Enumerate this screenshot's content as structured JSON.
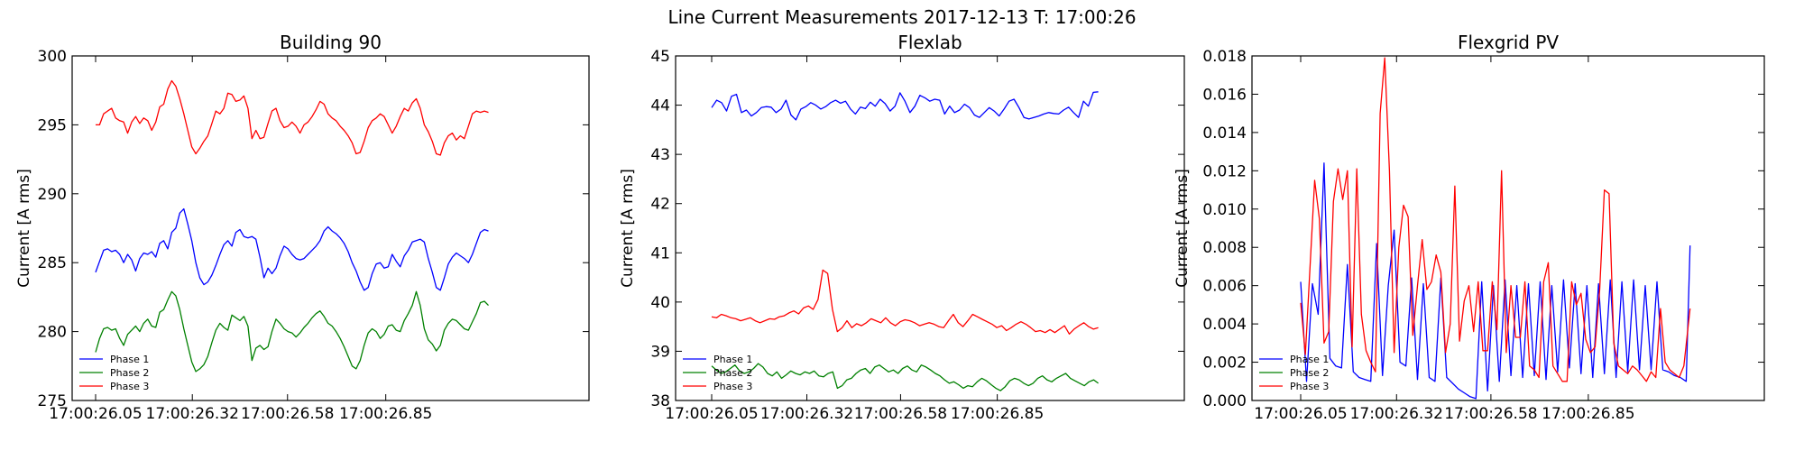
{
  "figure": {
    "suptitle": "Line Current Measurements 2017-12-13 T: 17:00:26"
  },
  "chart_data": [
    {
      "type": "line",
      "title": "Building 90",
      "xlabel": "",
      "ylabel": "Current [A rms]",
      "x_tick_labels": [
        "17:00:26.05",
        "17:00:26.32",
        "17:00:26.58",
        "17:00:26.85"
      ],
      "y_ticks": [
        275,
        280,
        285,
        290,
        295,
        300
      ],
      "ylim": [
        275,
        300
      ],
      "legend_position": "lower-left",
      "series": [
        {
          "name": "Phase 1",
          "color": "#0000ff",
          "values": [
            284.3,
            285.1,
            285.9,
            286.0,
            285.8,
            285.9,
            285.6,
            285.0,
            285.6,
            285.2,
            284.4,
            285.3,
            285.7,
            285.6,
            285.8,
            285.4,
            286.4,
            286.6,
            286.0,
            287.2,
            287.5,
            288.6,
            288.9,
            287.8,
            286.6,
            285.0,
            283.9,
            283.4,
            283.6,
            284.1,
            284.8,
            285.6,
            286.3,
            286.6,
            286.2,
            287.2,
            287.4,
            286.9,
            286.8,
            286.9,
            286.7,
            285.4,
            283.9,
            284.6,
            284.2,
            284.6,
            285.5,
            286.2,
            286.0,
            285.6,
            285.3,
            285.2,
            285.3,
            285.6,
            285.9,
            286.2,
            286.6,
            287.3,
            287.6,
            287.3,
            287.1,
            286.8,
            286.4,
            285.8,
            285.0,
            284.4,
            283.6,
            283.0,
            283.2,
            284.2,
            284.9,
            285.0,
            284.6,
            284.7,
            285.6,
            285.1,
            284.7,
            285.5,
            285.9,
            286.5,
            286.6,
            286.7,
            286.5,
            285.3,
            284.3,
            283.2,
            283.0,
            283.9,
            284.9,
            285.4,
            285.7,
            285.5,
            285.3,
            285.0,
            285.6,
            286.4,
            287.2,
            287.4,
            287.3
          ]
        },
        {
          "name": "Phase 2",
          "color": "#008000",
          "values": [
            278.5,
            279.5,
            280.2,
            280.3,
            280.1,
            280.2,
            279.5,
            279.0,
            279.8,
            280.1,
            280.4,
            280.0,
            280.6,
            280.9,
            280.4,
            280.3,
            281.4,
            281.6,
            282.3,
            282.9,
            282.6,
            281.6,
            280.2,
            279.0,
            277.8,
            277.1,
            277.3,
            277.6,
            278.2,
            279.2,
            280.1,
            280.6,
            280.3,
            280.1,
            281.2,
            281.0,
            280.8,
            281.1,
            280.4,
            277.9,
            278.8,
            279.0,
            278.7,
            278.9,
            280.0,
            280.9,
            280.6,
            280.2,
            280.0,
            279.9,
            279.6,
            279.9,
            280.3,
            280.6,
            281.0,
            281.3,
            281.5,
            281.1,
            280.6,
            280.4,
            280.0,
            279.5,
            278.9,
            278.2,
            277.5,
            277.3,
            277.9,
            279.0,
            279.9,
            280.2,
            280.0,
            279.5,
            279.8,
            280.4,
            280.5,
            280.1,
            280.0,
            280.8,
            281.3,
            281.9,
            282.9,
            281.9,
            280.2,
            279.4,
            279.1,
            278.6,
            279.0,
            280.1,
            280.6,
            280.9,
            280.8,
            280.5,
            280.2,
            280.1,
            280.7,
            281.3,
            282.1,
            282.2,
            281.9
          ]
        },
        {
          "name": "Phase 3",
          "color": "#ff0000",
          "values": [
            295.0,
            295.0,
            295.8,
            296.0,
            296.2,
            295.5,
            295.3,
            295.2,
            294.4,
            295.2,
            295.6,
            295.1,
            295.5,
            295.3,
            294.6,
            295.2,
            296.3,
            296.5,
            297.6,
            298.2,
            297.8,
            296.9,
            295.8,
            294.6,
            293.4,
            292.9,
            293.3,
            293.8,
            294.2,
            295.1,
            296.0,
            295.8,
            296.2,
            297.3,
            297.2,
            296.7,
            296.8,
            297.1,
            296.2,
            294.0,
            294.6,
            294.0,
            294.1,
            295.1,
            296.0,
            296.2,
            295.3,
            294.8,
            294.9,
            295.2,
            294.9,
            294.4,
            295.0,
            295.2,
            295.6,
            296.1,
            296.7,
            296.5,
            295.8,
            295.5,
            295.3,
            294.9,
            294.6,
            294.2,
            293.7,
            292.9,
            293.0,
            293.8,
            294.8,
            295.3,
            295.5,
            295.8,
            295.6,
            295.0,
            294.4,
            294.9,
            295.6,
            296.2,
            296.0,
            296.6,
            296.9,
            296.2,
            295.0,
            294.5,
            293.8,
            292.9,
            292.8,
            293.7,
            294.2,
            294.4,
            293.9,
            294.2,
            294.0,
            294.9,
            295.8,
            296.0,
            295.9,
            296.0,
            295.9
          ]
        }
      ]
    },
    {
      "type": "line",
      "title": "Flexlab",
      "xlabel": "",
      "ylabel": "Current [A rms]",
      "x_tick_labels": [
        "17:00:26.05",
        "17:00:26.32",
        "17:00:26.58",
        "17:00:26.85"
      ],
      "y_ticks": [
        38,
        39,
        40,
        41,
        42,
        43,
        44,
        45
      ],
      "ylim": [
        38,
        45
      ],
      "legend_position": "lower-left",
      "series": [
        {
          "name": "Phase 1",
          "color": "#0000ff",
          "values": [
            43.95,
            44.1,
            44.05,
            43.88,
            44.18,
            44.22,
            43.85,
            43.9,
            43.78,
            43.85,
            43.95,
            43.97,
            43.96,
            43.85,
            43.92,
            44.1,
            43.8,
            43.7,
            43.92,
            43.97,
            44.05,
            44.0,
            43.92,
            43.97,
            44.05,
            44.1,
            44.04,
            44.08,
            43.92,
            43.82,
            43.96,
            43.93,
            44.06,
            43.98,
            44.12,
            44.03,
            43.88,
            43.98,
            44.25,
            44.08,
            43.85,
            43.98,
            44.2,
            44.15,
            44.08,
            44.12,
            44.1,
            43.82,
            43.98,
            43.85,
            43.9,
            44.02,
            43.95,
            43.8,
            43.75,
            43.85,
            43.95,
            43.88,
            43.78,
            43.92,
            44.08,
            44.12,
            43.95,
            43.75,
            43.72,
            43.75,
            43.78,
            43.82,
            43.85,
            43.83,
            43.82,
            43.9,
            43.96,
            43.85,
            43.75,
            44.08,
            43.98,
            44.26,
            44.27
          ]
        },
        {
          "name": "Phase 2",
          "color": "#008000",
          "values": [
            38.7,
            38.62,
            38.55,
            38.58,
            38.65,
            38.72,
            38.6,
            38.55,
            38.58,
            38.65,
            38.75,
            38.68,
            38.55,
            38.5,
            38.58,
            38.45,
            38.52,
            38.6,
            38.55,
            38.52,
            38.58,
            38.55,
            38.6,
            38.5,
            38.48,
            38.55,
            38.58,
            38.25,
            38.3,
            38.42,
            38.45,
            38.55,
            38.62,
            38.65,
            38.55,
            38.68,
            38.72,
            38.65,
            38.58,
            38.62,
            38.55,
            38.65,
            38.7,
            38.62,
            38.58,
            38.72,
            38.68,
            38.62,
            38.55,
            38.5,
            38.42,
            38.35,
            38.38,
            38.32,
            38.25,
            38.3,
            38.28,
            38.38,
            38.45,
            38.4,
            38.32,
            38.25,
            38.2,
            38.28,
            38.4,
            38.45,
            38.42,
            38.35,
            38.3,
            38.35,
            38.45,
            38.5,
            38.42,
            38.38,
            38.45,
            38.5,
            38.55,
            38.45,
            38.4,
            38.35,
            38.3,
            38.38,
            38.42,
            38.35
          ]
        },
        {
          "name": "Phase 3",
          "color": "#ff0000",
          "values": [
            39.7,
            39.68,
            39.75,
            39.72,
            39.68,
            39.66,
            39.62,
            39.65,
            39.68,
            39.62,
            39.58,
            39.62,
            39.66,
            39.65,
            39.7,
            39.72,
            39.78,
            39.82,
            39.76,
            39.88,
            39.92,
            39.85,
            40.05,
            40.65,
            40.58,
            39.85,
            39.4,
            39.48,
            39.62,
            39.48,
            39.56,
            39.52,
            39.58,
            39.66,
            39.62,
            39.58,
            39.68,
            39.58,
            39.52,
            39.6,
            39.64,
            39.62,
            39.58,
            39.52,
            39.55,
            39.58,
            39.55,
            39.5,
            39.48,
            39.62,
            39.75,
            39.58,
            39.5,
            39.62,
            39.75,
            39.7,
            39.65,
            39.6,
            39.55,
            39.48,
            39.52,
            39.42,
            39.48,
            39.55,
            39.6,
            39.55,
            39.48,
            39.4,
            39.42,
            39.38,
            39.44,
            39.38,
            39.45,
            39.52,
            39.35,
            39.45,
            39.52,
            39.58,
            39.5,
            39.45,
            39.48
          ]
        }
      ]
    },
    {
      "type": "line",
      "title": "Flexgrid PV",
      "xlabel": "",
      "ylabel": "Current [A rms]",
      "x_tick_labels": [
        "17:00:26.05",
        "17:00:26.32",
        "17:00:26.58",
        "17:00:26.85"
      ],
      "y_ticks": [
        0.0,
        0.002,
        0.004,
        0.006,
        0.008,
        0.01,
        0.012,
        0.014,
        0.016,
        0.018
      ],
      "y_tick_labels": [
        "0.000",
        "0.002",
        "0.004",
        "0.006",
        "0.008",
        "0.010",
        "0.012",
        "0.014",
        "0.016",
        "0.018"
      ],
      "ylim": [
        0,
        0.018
      ],
      "legend_position": "lower-left",
      "series": [
        {
          "name": "Phase 1",
          "color": "#0000ff",
          "x": [
            0.0,
            0.015,
            0.03,
            0.045,
            0.06,
            0.075,
            0.09,
            0.105,
            0.12,
            0.135,
            0.15,
            0.165,
            0.18,
            0.195,
            0.21,
            0.225,
            0.24,
            0.255,
            0.27,
            0.285,
            0.3,
            0.315,
            0.33,
            0.345,
            0.36,
            0.375,
            0.39,
            0.405,
            0.42,
            0.435,
            0.45,
            0.465,
            0.48,
            0.495,
            0.51,
            0.525,
            0.54,
            0.555,
            0.57,
            0.585,
            0.6,
            0.615,
            0.63,
            0.645,
            0.66,
            0.675,
            0.69,
            0.705,
            0.72,
            0.735,
            0.75,
            0.765,
            0.78,
            0.795,
            0.81,
            0.825,
            0.84,
            0.855,
            0.87,
            0.885,
            0.9,
            0.915,
            0.93,
            0.945,
            0.96,
            0.975,
            0.99,
            1.0
          ],
          "values": [
            0.0062,
            0.001,
            0.0061,
            0.0045,
            0.0124,
            0.0022,
            0.0018,
            0.0017,
            0.0071,
            0.0015,
            0.0012,
            0.0011,
            0.001,
            0.0082,
            0.0013,
            0.006,
            0.0089,
            0.002,
            0.0018,
            0.0064,
            0.0011,
            0.0061,
            0.0012,
            0.001,
            0.0064,
            0.0012,
            0.0009,
            0.0006,
            0.0004,
            0.0002,
            0.0001,
            0.0062,
            0.0005,
            0.006,
            0.001,
            0.0063,
            0.0013,
            0.006,
            0.0012,
            0.0061,
            0.0013,
            0.0062,
            0.0011,
            0.006,
            0.0015,
            0.0063,
            0.0017,
            0.0061,
            0.0014,
            0.006,
            0.0012,
            0.0061,
            0.0014,
            0.0063,
            0.0012,
            0.0062,
            0.0015,
            0.0063,
            0.0016,
            0.006,
            0.0016,
            0.0062,
            0.0016,
            0.0015,
            0.0013,
            0.0012,
            0.001,
            0.0081
          ]
        },
        {
          "name": "Phase 2",
          "color": "#008000",
          "x": [
            0.0,
            1.0
          ],
          "values": [
            0.0,
            0.0
          ]
        },
        {
          "name": "Phase 3",
          "color": "#ff0000",
          "x": [
            0.0,
            0.012,
            0.024,
            0.036,
            0.048,
            0.06,
            0.072,
            0.084,
            0.096,
            0.108,
            0.12,
            0.132,
            0.144,
            0.156,
            0.168,
            0.18,
            0.192,
            0.204,
            0.216,
            0.228,
            0.24,
            0.252,
            0.264,
            0.276,
            0.288,
            0.3,
            0.312,
            0.324,
            0.336,
            0.348,
            0.36,
            0.372,
            0.384,
            0.396,
            0.408,
            0.42,
            0.432,
            0.444,
            0.456,
            0.468,
            0.48,
            0.492,
            0.504,
            0.516,
            0.528,
            0.54,
            0.552,
            0.564,
            0.576,
            0.588,
            0.6,
            0.612,
            0.624,
            0.636,
            0.648,
            0.66,
            0.672,
            0.684,
            0.696,
            0.708,
            0.72,
            0.732,
            0.744,
            0.756,
            0.768,
            0.78,
            0.792,
            0.804,
            0.816,
            0.828,
            0.84,
            0.852,
            0.864,
            0.876,
            0.888,
            0.9,
            0.912,
            0.924,
            0.936,
            0.948,
            0.96,
            0.972,
            0.984,
            1.0
          ],
          "values": [
            0.0051,
            0.0024,
            0.007,
            0.0115,
            0.0095,
            0.003,
            0.0036,
            0.0104,
            0.0121,
            0.0105,
            0.012,
            0.0028,
            0.0121,
            0.0045,
            0.0026,
            0.002,
            0.0015,
            0.015,
            0.0179,
            0.012,
            0.0025,
            0.008,
            0.0102,
            0.0096,
            0.0034,
            0.006,
            0.0084,
            0.0058,
            0.0062,
            0.0076,
            0.0067,
            0.0025,
            0.004,
            0.0112,
            0.0031,
            0.0052,
            0.006,
            0.0036,
            0.0062,
            0.0026,
            0.0026,
            0.0062,
            0.0037,
            0.012,
            0.0025,
            0.006,
            0.0033,
            0.0033,
            0.0062,
            0.0018,
            0.0016,
            0.0012,
            0.0062,
            0.0072,
            0.0018,
            0.0014,
            0.001,
            0.001,
            0.0062,
            0.005,
            0.0056,
            0.0032,
            0.0025,
            0.0028,
            0.0058,
            0.011,
            0.0108,
            0.003,
            0.0018,
            0.0016,
            0.0014,
            0.0018,
            0.0016,
            0.0013,
            0.001,
            0.0015,
            0.0012,
            0.0048,
            0.002,
            0.0016,
            0.0014,
            0.0012,
            0.0018,
            0.0048
          ]
        }
      ]
    }
  ]
}
